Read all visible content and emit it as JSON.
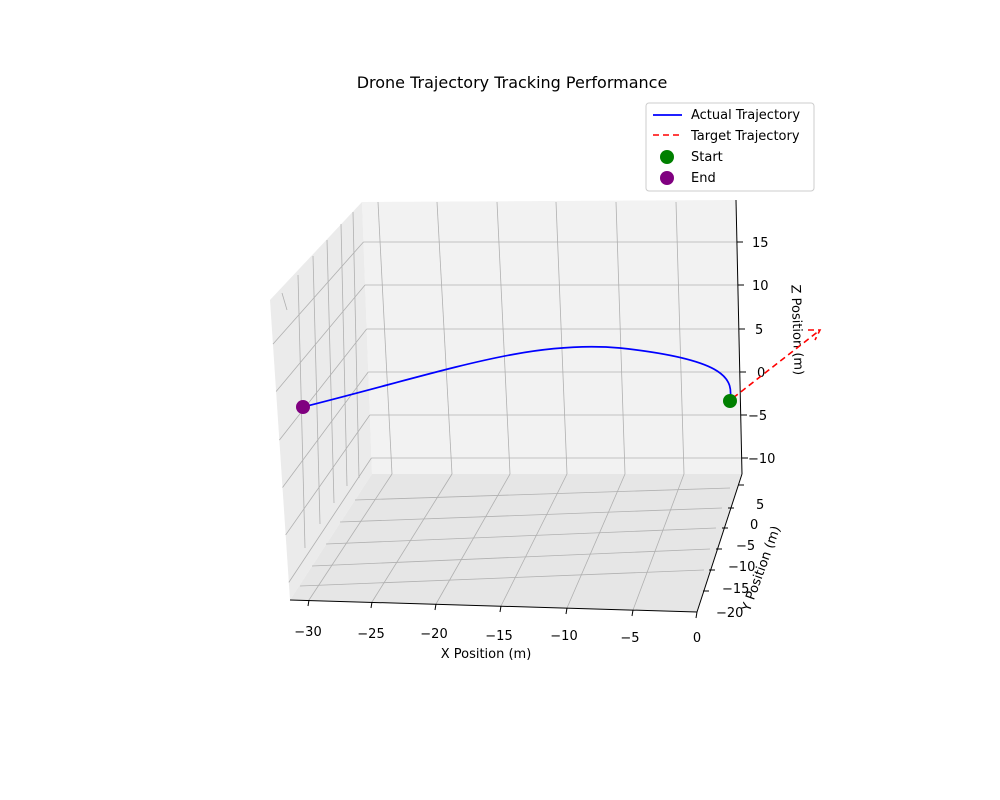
{
  "chart_data": {
    "type": "line3d",
    "title": "Drone Trajectory Tracking Performance",
    "xlabel": "X Position (m)",
    "ylabel": "Y Position (m)",
    "zlabel": "Z Position (m)",
    "xticks": [
      "−30",
      "−25",
      "−20",
      "−15",
      "−10",
      "−5",
      "0"
    ],
    "yticks": [
      "5",
      "0",
      "−5",
      "−10",
      "−15",
      "−20"
    ],
    "zticks": [
      "15",
      "10",
      "5",
      "0",
      "−5",
      "−10"
    ],
    "grid": true,
    "legend_position": "top-right",
    "series": [
      {
        "name": "Actual Trajectory",
        "style": "solid",
        "color": "#0000ff"
      },
      {
        "name": "Target Trajectory",
        "style": "dashed",
        "color": "#ff0000"
      },
      {
        "name": "Start",
        "style": "marker",
        "color": "#008000"
      },
      {
        "name": "End",
        "style": "marker",
        "color": "#800080"
      }
    ]
  }
}
